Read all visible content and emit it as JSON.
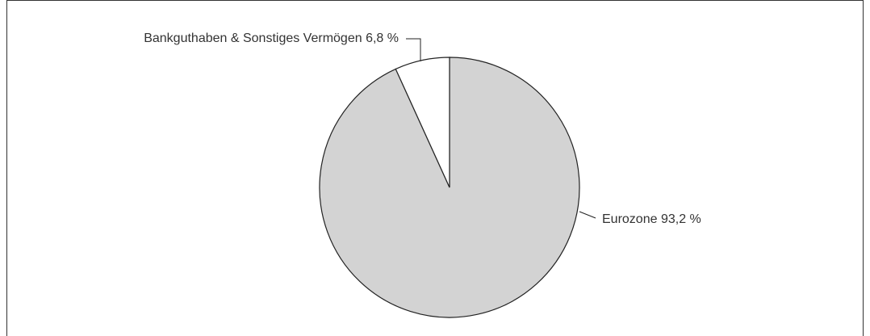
{
  "chart_data": {
    "type": "pie",
    "categories": [
      "Eurozone",
      "Bankguthaben & Sonstiges Vermögen"
    ],
    "values": [
      93.2,
      6.8
    ],
    "value_labels": [
      "93,2 %",
      "6,8 %"
    ],
    "colors": [
      "#d3d3d3",
      "#ffffff"
    ]
  }
}
